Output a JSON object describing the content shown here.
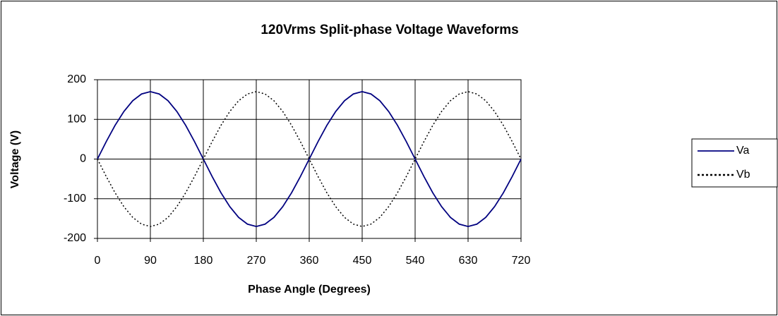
{
  "chart_data": {
    "type": "line",
    "title": "120Vrms Split-phase Voltage Waveforms",
    "x_label": "Phase Angle (Degrees)",
    "y_label": "Voltage (V)",
    "x": [
      0,
      15,
      30,
      45,
      60,
      75,
      90,
      105,
      120,
      135,
      150,
      165,
      180,
      195,
      210,
      225,
      240,
      255,
      270,
      285,
      300,
      315,
      330,
      345,
      360,
      375,
      390,
      405,
      420,
      435,
      450,
      465,
      480,
      495,
      510,
      525,
      540,
      555,
      570,
      585,
      600,
      615,
      630,
      645,
      660,
      675,
      690,
      705,
      720
    ],
    "series": [
      {
        "name": "Va",
        "color": "#000080",
        "style": "solid",
        "values": [
          0,
          44,
          85,
          120,
          147,
          164,
          170,
          164,
          147,
          120,
          85,
          44,
          0,
          -44,
          -85,
          -120,
          -147,
          -164,
          -170,
          -164,
          -147,
          -120,
          -85,
          -44,
          0,
          44,
          85,
          120,
          147,
          164,
          170,
          164,
          147,
          120,
          85,
          44,
          0,
          -44,
          -85,
          -120,
          -147,
          -164,
          -170,
          -164,
          -147,
          -120,
          -85,
          -44,
          0
        ]
      },
      {
        "name": "Vb",
        "color": "#000000",
        "style": "dotted",
        "values": [
          0,
          -44,
          -85,
          -120,
          -147,
          -164,
          -170,
          -164,
          -147,
          -120,
          -85,
          -44,
          0,
          44,
          85,
          120,
          147,
          164,
          170,
          164,
          147,
          120,
          85,
          44,
          0,
          -44,
          -85,
          -120,
          -147,
          -164,
          -170,
          -164,
          -147,
          -120,
          -85,
          -44,
          0,
          44,
          85,
          120,
          147,
          164,
          170,
          164,
          147,
          120,
          85,
          44,
          0
        ]
      }
    ],
    "xlim": [
      0,
      720
    ],
    "xticks": [
      0,
      90,
      180,
      270,
      360,
      450,
      540,
      630,
      720
    ],
    "ylim": [
      -200,
      200
    ],
    "yticks": [
      -200,
      -100,
      0,
      100,
      200
    ],
    "grid": true,
    "legend": "right"
  }
}
